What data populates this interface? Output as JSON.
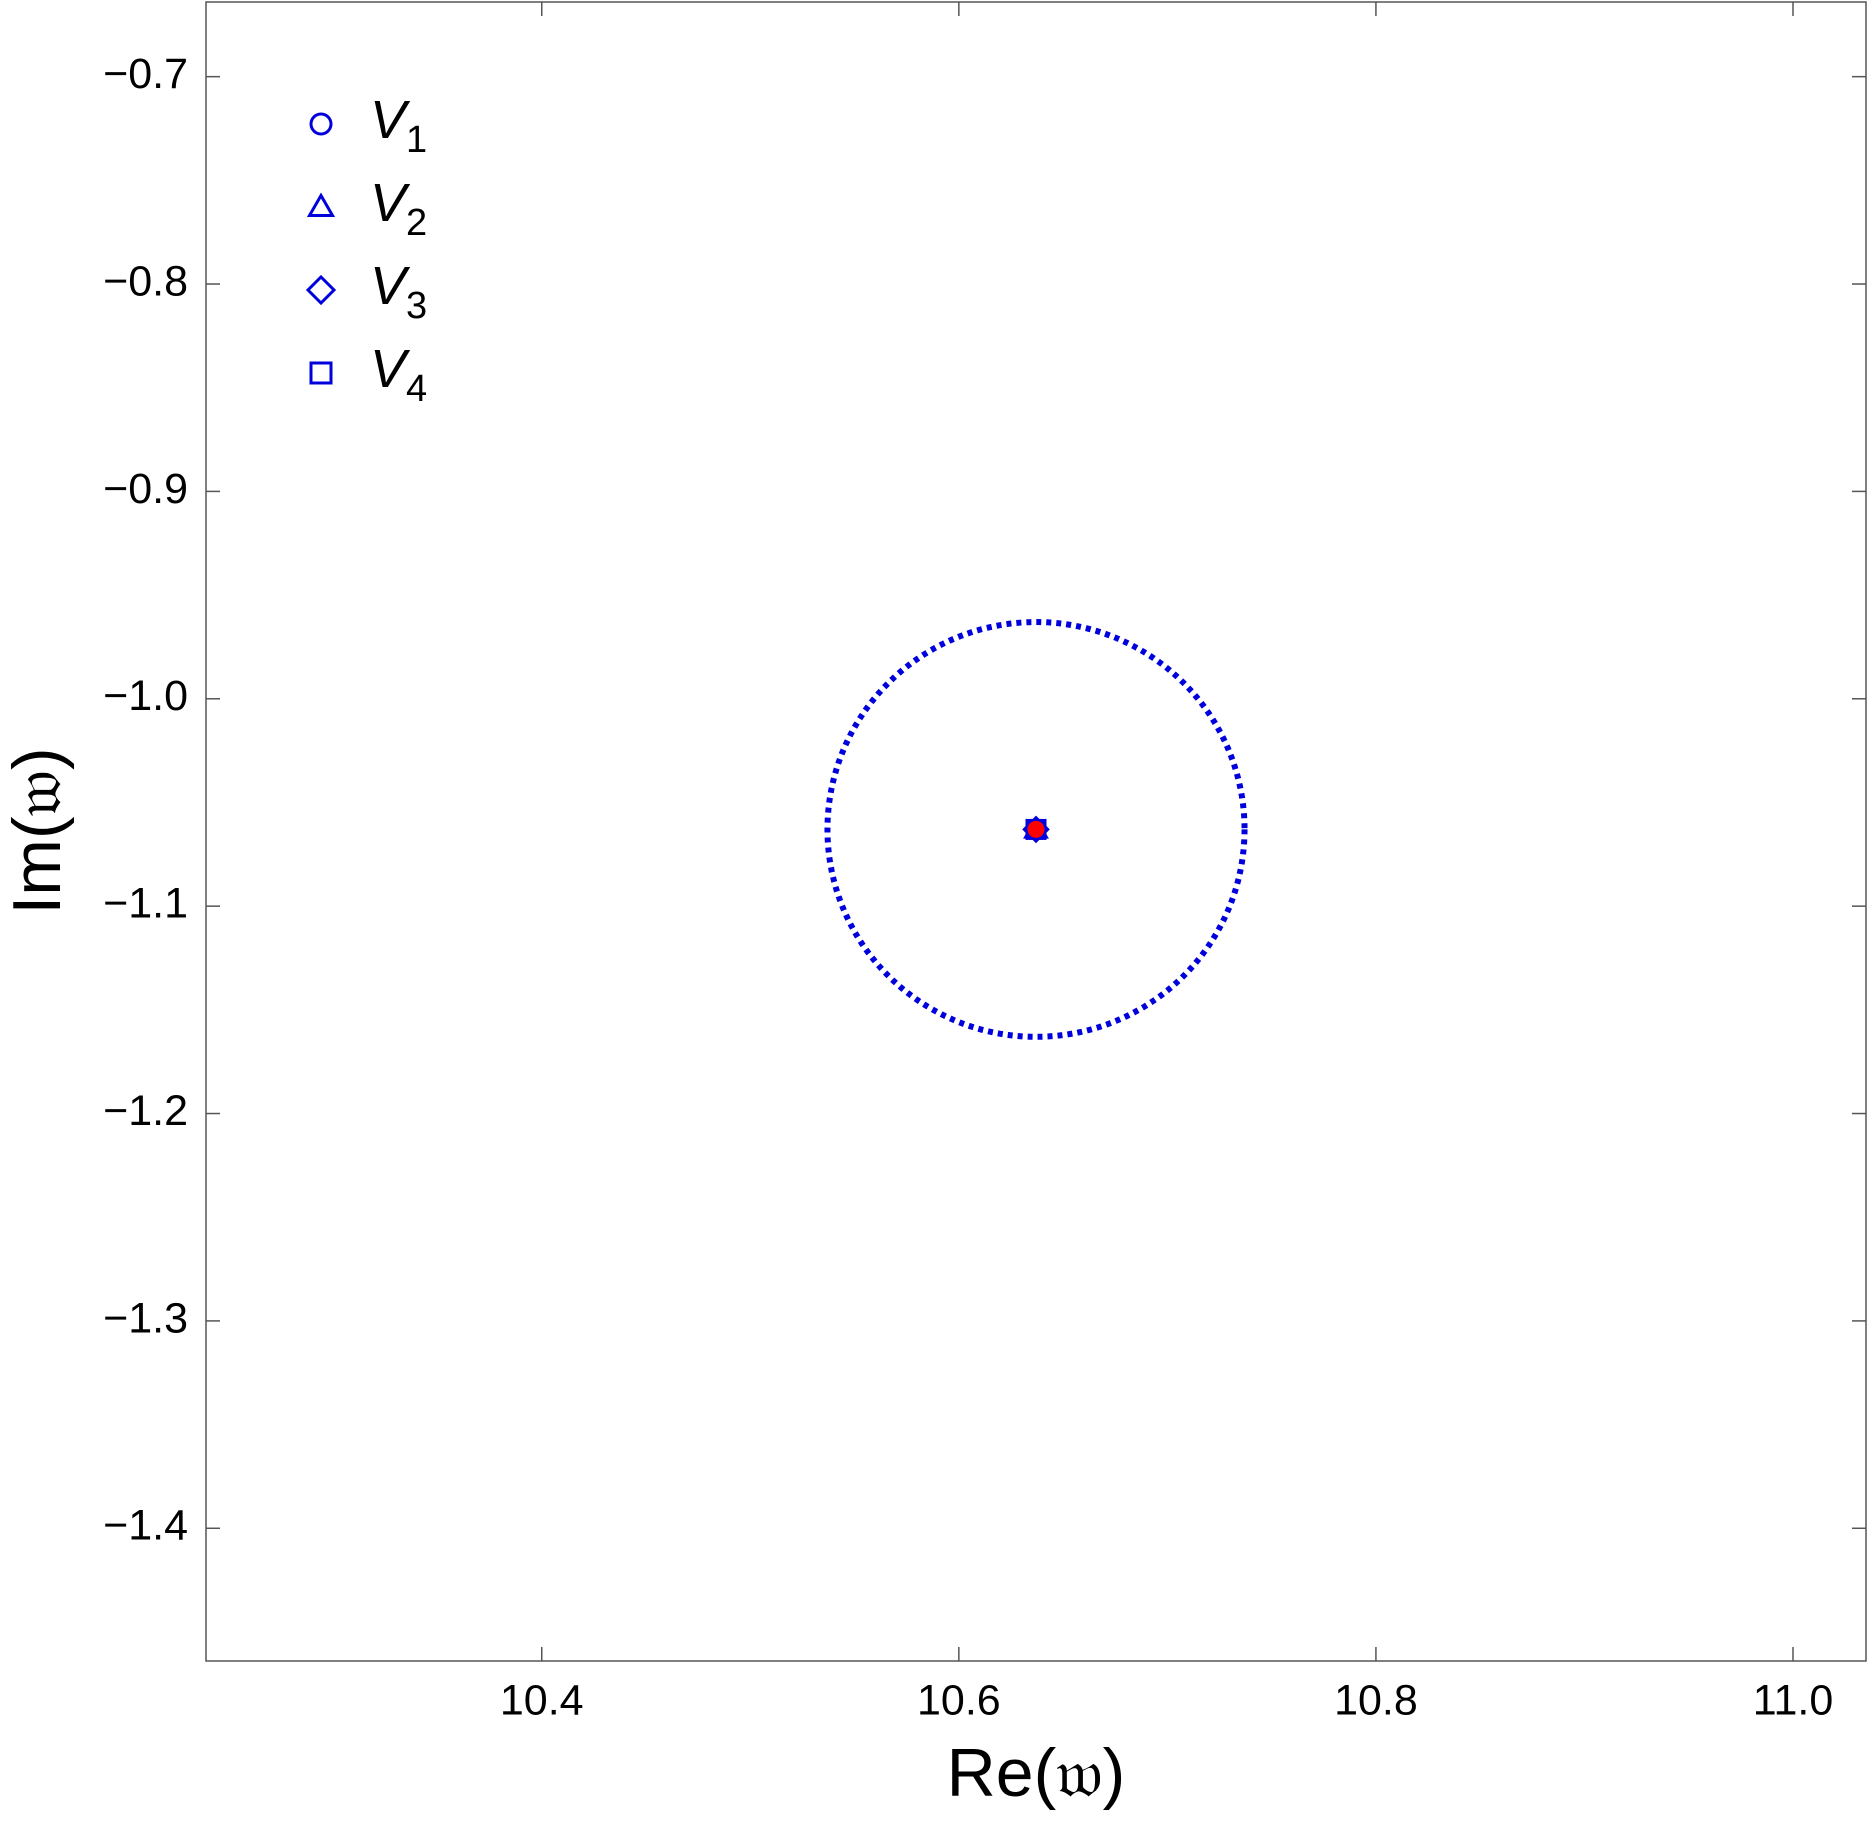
{
  "chart_data": {
    "type": "scatter",
    "x_label": "Re(𝔴)",
    "y_label": "Im(𝔴)",
    "xlim": [
      10.239,
      11.035
    ],
    "ylim": [
      -1.464,
      -0.664
    ],
    "xticks": [
      {
        "value": 10.4,
        "label": "10.4"
      },
      {
        "value": 10.6,
        "label": "10.6"
      },
      {
        "value": 10.8,
        "label": "10.8"
      },
      {
        "value": 11.0,
        "label": "11.0"
      }
    ],
    "yticks": [
      {
        "value": -0.7,
        "label": "−0.7"
      },
      {
        "value": -0.8,
        "label": "−0.8"
      },
      {
        "value": -0.9,
        "label": "−0.9"
      },
      {
        "value": -1.0,
        "label": "−1.0"
      },
      {
        "value": -1.1,
        "label": "−1.1"
      },
      {
        "value": -1.2,
        "label": "−1.2"
      },
      {
        "value": -1.3,
        "label": "−1.3"
      },
      {
        "value": -1.4,
        "label": "−1.4"
      }
    ],
    "legend_position": "upper left",
    "series": [
      {
        "name": "V1",
        "color": "#0000dd",
        "marker": "circle",
        "x": [
          10.637
        ],
        "y": [
          -1.063
        ]
      },
      {
        "name": "V2",
        "color": "#0000dd",
        "marker": "triangle",
        "x": [
          10.637
        ],
        "y": [
          -1.063
        ]
      },
      {
        "name": "V3",
        "color": "#0000dd",
        "marker": "diamond",
        "x": [
          10.637
        ],
        "y": [
          -1.063
        ]
      },
      {
        "name": "V4",
        "color": "#0000dd",
        "marker": "square",
        "x": [
          10.637
        ],
        "y": [
          -1.063
        ]
      },
      {
        "color": "#ff0000",
        "marker": "dot",
        "x": [
          10.637
        ],
        "y": [
          -1.063
        ]
      }
    ],
    "circle": {
      "center": [
        10.637,
        -1.063
      ],
      "radius": 0.1,
      "color": "#0000dd",
      "style": "dotted"
    }
  }
}
